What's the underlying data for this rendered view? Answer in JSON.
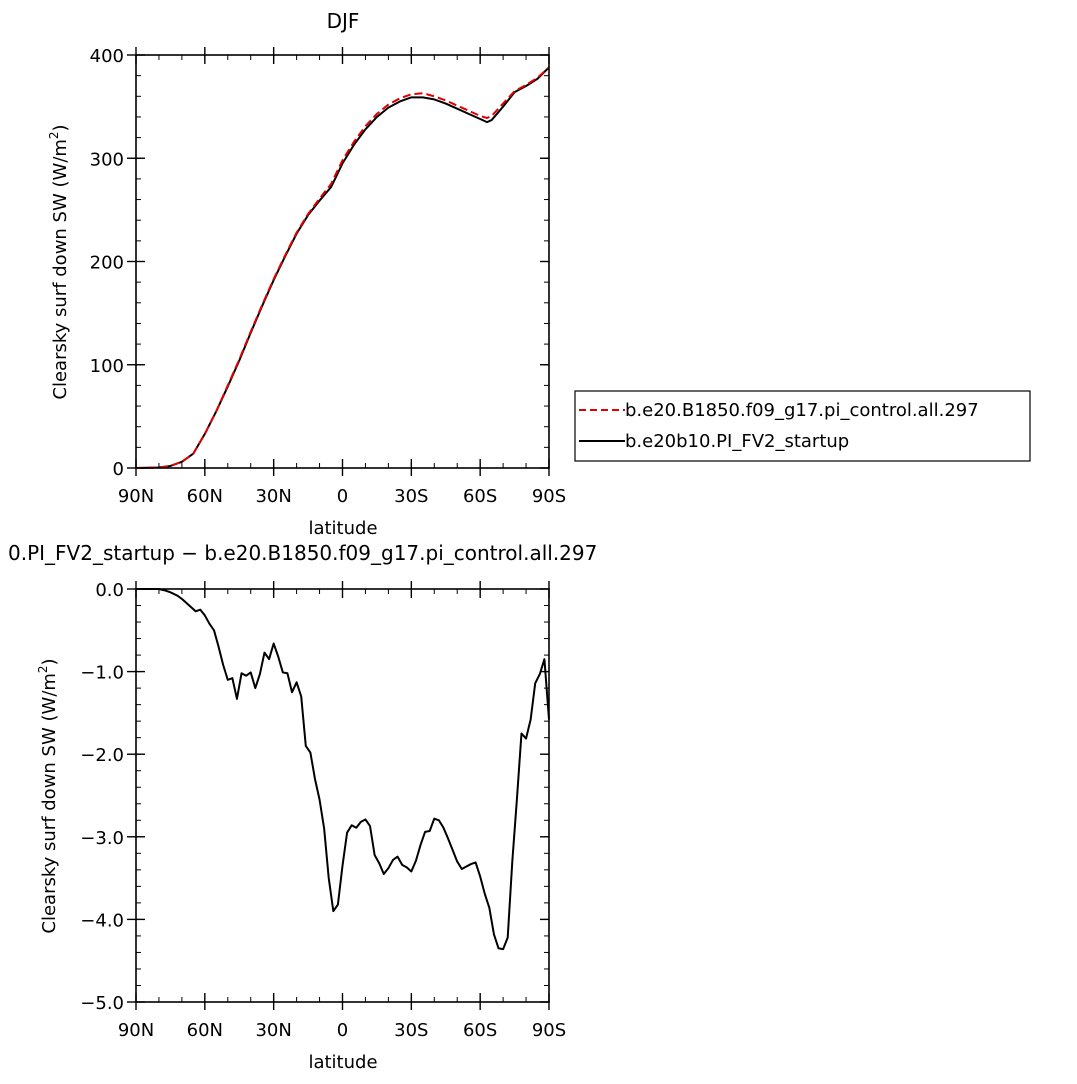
{
  "chart_data": [
    {
      "type": "line",
      "title": "DJF",
      "xlabel": "latitude",
      "ylabel": "Clearsky surf down SW (W/m²)",
      "ylabel_main": "Clearsky surf down SW (W/m",
      "ylabel_sup": "2",
      "ylabel_end": ")",
      "xlim": [
        90,
        -90
      ],
      "ylim": [
        0,
        400
      ],
      "xticks": [
        {
          "value": 90,
          "label": "90N"
        },
        {
          "value": 60,
          "label": "60N"
        },
        {
          "value": 30,
          "label": "30N"
        },
        {
          "value": 0,
          "label": "0"
        },
        {
          "value": -30,
          "label": "30S"
        },
        {
          "value": -60,
          "label": "60S"
        },
        {
          "value": -90,
          "label": "90S"
        }
      ],
      "yticks": [
        {
          "value": 0,
          "label": "0"
        },
        {
          "value": 100,
          "label": "100"
        },
        {
          "value": 200,
          "label": "200"
        },
        {
          "value": 300,
          "label": "300"
        },
        {
          "value": 400,
          "label": "400"
        }
      ],
      "legend_position": "right",
      "series": [
        {
          "name": "b.e20.B1850.f09_g17.pi_control.all.297",
          "color": "#e00000",
          "dash": "dashed",
          "x": [
            90,
            80,
            75,
            70,
            65,
            60,
            55,
            50,
            45,
            40,
            35,
            30,
            25,
            20,
            15,
            10,
            5,
            0,
            -5,
            -10,
            -15,
            -20,
            -25,
            -30,
            -35,
            -40,
            -45,
            -50,
            -55,
            -60,
            -63,
            -65,
            -70,
            -75,
            -80,
            -85,
            -90
          ],
          "y": [
            0,
            0.5,
            2,
            6,
            14,
            33,
            55,
            80,
            105,
            132,
            158,
            183,
            206,
            228,
            246,
            261,
            275,
            298,
            316,
            331,
            343,
            352,
            358,
            362,
            363,
            360,
            356,
            351,
            346,
            341,
            339,
            341,
            353,
            365,
            371,
            378,
            388
          ]
        },
        {
          "name": "b.e20b10.PI_FV2_startup",
          "color": "#000000",
          "dash": "solid",
          "x": [
            90,
            80,
            75,
            70,
            65,
            60,
            55,
            50,
            45,
            40,
            35,
            30,
            25,
            20,
            15,
            10,
            5,
            0,
            -5,
            -10,
            -15,
            -20,
            -25,
            -30,
            -35,
            -40,
            -45,
            -50,
            -55,
            -60,
            -63,
            -65,
            -70,
            -75,
            -80,
            -85,
            -90
          ],
          "y": [
            0,
            0.5,
            2,
            6,
            14,
            33,
            55,
            79,
            104,
            131,
            157,
            182,
            205,
            227,
            245,
            259,
            272,
            295,
            313,
            328,
            340,
            349,
            355,
            359,
            359,
            357,
            353,
            348,
            343,
            338,
            335,
            337,
            350,
            364,
            370,
            377,
            388
          ]
        }
      ]
    },
    {
      "type": "line",
      "title": "0.PI_FV2_startup − b.e20.B1850.f09_g17.pi_control.all.297",
      "xlabel": "latitude",
      "ylabel": "Clearsky surf down SW (W/m²)",
      "ylabel_main": "Clearsky surf down SW (W/m",
      "ylabel_sup": "2",
      "ylabel_end": ")",
      "xlim": [
        90,
        -90
      ],
      "ylim": [
        -5,
        0
      ],
      "xticks": [
        {
          "value": 90,
          "label": "90N"
        },
        {
          "value": 60,
          "label": "60N"
        },
        {
          "value": 30,
          "label": "30N"
        },
        {
          "value": 0,
          "label": "0"
        },
        {
          "value": -30,
          "label": "30S"
        },
        {
          "value": -60,
          "label": "60S"
        },
        {
          "value": -90,
          "label": "90S"
        }
      ],
      "yticks": [
        {
          "value": 0,
          "label": "0.0"
        },
        {
          "value": -1,
          "label": "−1.0"
        },
        {
          "value": -2,
          "label": "−2.0"
        },
        {
          "value": -3,
          "label": "−3.0"
        },
        {
          "value": -4,
          "label": "−4.0"
        },
        {
          "value": -5,
          "label": "−5.0"
        }
      ],
      "series": [
        {
          "color": "#000000",
          "dash": "solid",
          "x": [
            90,
            80,
            77,
            75,
            72,
            70,
            68,
            66,
            64,
            62,
            60,
            58,
            56,
            54,
            52,
            50,
            48,
            46,
            44,
            42,
            40,
            38,
            36,
            34,
            32,
            30,
            28,
            26,
            24,
            22,
            20,
            18,
            16,
            14,
            12,
            10,
            8,
            6,
            4,
            2,
            0,
            -2,
            -4,
            -6,
            -8,
            -10,
            -12,
            -14,
            -16,
            -18,
            -20,
            -22,
            -24,
            -26,
            -28,
            -30,
            -32,
            -34,
            -36,
            -38,
            -40,
            -42,
            -44,
            -46,
            -48,
            -50,
            -52,
            -54,
            -56,
            -58,
            -60,
            -62,
            -64,
            -66,
            -68,
            -70,
            -72,
            -74,
            -76,
            -78,
            -80,
            -82,
            -84,
            -86,
            -88,
            -90
          ],
          "y": [
            0,
            0,
            -0.02,
            -0.04,
            -0.08,
            -0.12,
            -0.17,
            -0.22,
            -0.27,
            -0.25,
            -0.32,
            -0.42,
            -0.5,
            -0.7,
            -0.92,
            -1.1,
            -1.08,
            -1.33,
            -1.02,
            -1.05,
            -1.01,
            -1.2,
            -1.03,
            -0.77,
            -0.85,
            -0.66,
            -0.82,
            -1.01,
            -1.02,
            -1.25,
            -1.13,
            -1.3,
            -1.9,
            -1.98,
            -2.3,
            -2.55,
            -2.9,
            -3.5,
            -3.9,
            -3.82,
            -3.35,
            -2.95,
            -2.86,
            -2.89,
            -2.82,
            -2.79,
            -2.87,
            -3.22,
            -3.32,
            -3.45,
            -3.38,
            -3.28,
            -3.24,
            -3.34,
            -3.37,
            -3.42,
            -3.29,
            -3.1,
            -2.94,
            -2.93,
            -2.78,
            -2.8,
            -2.89,
            -3.02,
            -3.16,
            -3.3,
            -3.39,
            -3.36,
            -3.33,
            -3.31,
            -3.48,
            -3.69,
            -3.86,
            -4.18,
            -4.35,
            -4.36,
            -4.22,
            -3.3,
            -2.55,
            -1.75,
            -1.81,
            -1.58,
            -1.14,
            -1.03,
            -0.85,
            -1.58
          ]
        }
      ]
    }
  ]
}
